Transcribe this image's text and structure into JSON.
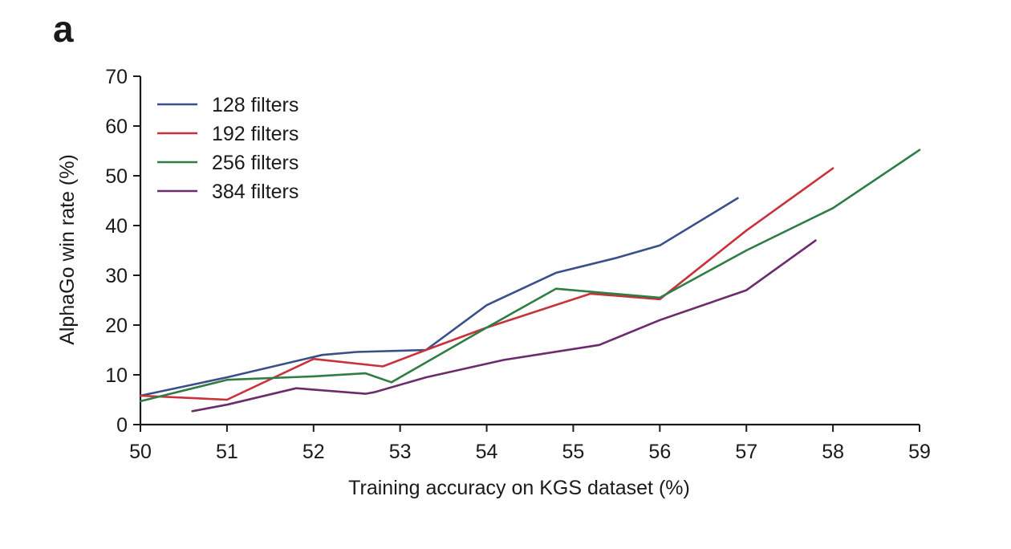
{
  "panel_label": "a",
  "chart_data": {
    "type": "line",
    "xlabel": "Training accuracy on KGS dataset (%)",
    "ylabel": "AlphaGo win rate (%)",
    "xlim": [
      50,
      59
    ],
    "ylim": [
      0,
      70
    ],
    "xticks": [
      50,
      51,
      52,
      53,
      54,
      55,
      56,
      57,
      58,
      59
    ],
    "yticks": [
      0,
      10,
      20,
      30,
      40,
      50,
      60,
      70
    ],
    "grid": false,
    "legend_position": "top-left",
    "series": [
      {
        "name": "128 filters",
        "color": "#3a4f8a",
        "points": [
          [
            50.0,
            5.8
          ],
          [
            51.0,
            9.5
          ],
          [
            52.1,
            14.0
          ],
          [
            52.5,
            14.6
          ],
          [
            53.3,
            15.0
          ],
          [
            54.0,
            24.0
          ],
          [
            54.8,
            30.5
          ],
          [
            55.5,
            33.5
          ],
          [
            56.0,
            36.0
          ],
          [
            56.9,
            45.5
          ]
        ]
      },
      {
        "name": "192 filters",
        "color": "#c8323a",
        "points": [
          [
            50.0,
            5.8
          ],
          [
            51.0,
            5.0
          ],
          [
            52.0,
            13.2
          ],
          [
            52.8,
            11.7
          ],
          [
            53.3,
            15.0
          ],
          [
            54.0,
            19.5
          ],
          [
            55.2,
            26.3
          ],
          [
            56.0,
            25.2
          ],
          [
            57.0,
            39.0
          ],
          [
            58.0,
            51.5
          ]
        ]
      },
      {
        "name": "256 filters",
        "color": "#2f7d44",
        "points": [
          [
            50.0,
            4.7
          ],
          [
            51.0,
            9.0
          ],
          [
            52.0,
            9.7
          ],
          [
            52.6,
            10.3
          ],
          [
            52.9,
            8.5
          ],
          [
            54.0,
            19.5
          ],
          [
            54.8,
            27.3
          ],
          [
            56.0,
            25.5
          ],
          [
            57.0,
            35.0
          ],
          [
            58.0,
            43.5
          ],
          [
            59.0,
            55.2
          ]
        ]
      },
      {
        "name": "384 filters",
        "color": "#6b2c6e",
        "points": [
          [
            50.6,
            2.7
          ],
          [
            51.0,
            4.0
          ],
          [
            51.8,
            7.3
          ],
          [
            52.6,
            6.2
          ],
          [
            52.7,
            6.5
          ],
          [
            53.3,
            9.5
          ],
          [
            54.2,
            13.0
          ],
          [
            55.3,
            16.0
          ],
          [
            56.0,
            21.0
          ],
          [
            57.0,
            27.0
          ],
          [
            57.8,
            37.0
          ]
        ]
      }
    ]
  }
}
